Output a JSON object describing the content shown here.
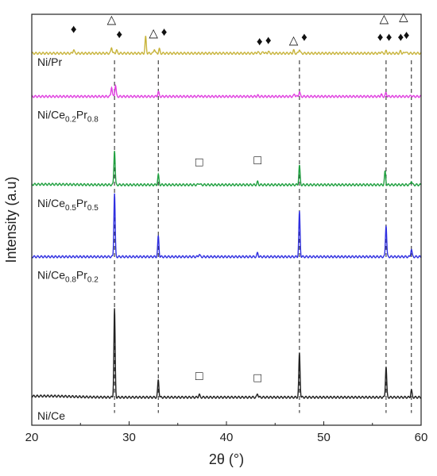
{
  "chart_data": {
    "type": "line",
    "xlabel": "2θ (°)",
    "ylabel": "Intensity (a.u)",
    "xlim": [
      20,
      60
    ],
    "x_ticks": [
      "20",
      "30",
      "40",
      "50",
      "60"
    ],
    "grid": false,
    "series": [
      {
        "name": "Ni/Pr",
        "label_main": "Ni/Pr",
        "label_parts": [
          {
            "t": "Ni/Pr",
            "sub": false
          }
        ],
        "color": "#c8b43c",
        "baseline": 0.905,
        "amp": 0.04,
        "hump": 0.0,
        "peaks": [
          [
            24.3,
            0.24
          ],
          [
            28.2,
            0.38
          ],
          [
            28.7,
            0.2
          ],
          [
            31.7,
            1.0
          ],
          [
            32.6,
            0.28
          ],
          [
            33.1,
            0.26
          ],
          [
            43.2,
            0.1
          ],
          [
            43.8,
            0.1
          ],
          [
            44.3,
            0.12
          ],
          [
            46.9,
            0.18
          ],
          [
            47.5,
            0.26
          ],
          [
            55.9,
            0.1
          ],
          [
            56.4,
            0.13
          ],
          [
            57.9,
            0.14
          ],
          [
            58.4,
            0.12
          ]
        ]
      },
      {
        "name": "Ni/Ce0.2Pr0.8",
        "label_main": "Ni/Ce0.2Pr0.8",
        "label_parts": [
          {
            "t": "Ni/Ce",
            "sub": false
          },
          {
            "t": "0.2",
            "sub": true
          },
          {
            "t": "Pr",
            "sub": false
          },
          {
            "t": "0.8",
            "sub": true
          }
        ],
        "color": "#e040e0",
        "baseline": 0.8,
        "amp": 0.04,
        "hump": 0.0,
        "peaks": [
          [
            28.2,
            0.6
          ],
          [
            28.6,
            0.7
          ],
          [
            33.0,
            0.3
          ],
          [
            37.2,
            0.04
          ],
          [
            43.2,
            0.06
          ],
          [
            47.0,
            0.15
          ],
          [
            47.5,
            0.3
          ],
          [
            55.9,
            0.12
          ],
          [
            56.4,
            0.22
          ],
          [
            59.0,
            0.06
          ]
        ]
      },
      {
        "name": "Ni/Ce0.5Pr0.5",
        "label_main": "Ni/Ce0.5Pr0.5",
        "label_parts": [
          {
            "t": "Ni/Ce",
            "sub": false
          },
          {
            "t": "0.5",
            "sub": true
          },
          {
            "t": "Pr",
            "sub": false
          },
          {
            "t": "0.5",
            "sub": true
          }
        ],
        "color": "#20a040",
        "baseline": 0.585,
        "amp": 0.085,
        "hump": 0.04,
        "peaks": [
          [
            28.5,
            1.0
          ],
          [
            33.0,
            0.28
          ],
          [
            37.2,
            0.05
          ],
          [
            43.2,
            0.08
          ],
          [
            47.5,
            0.55
          ],
          [
            56.3,
            0.38
          ],
          [
            59.0,
            0.12
          ]
        ]
      },
      {
        "name": "Ni/Ce0.8Pr0.2",
        "label_main": "Ni/Ce0.8Pr0.2",
        "label_parts": [
          {
            "t": "Ni/Ce",
            "sub": false
          },
          {
            "t": "0.8",
            "sub": true
          },
          {
            "t": "Pr",
            "sub": false
          },
          {
            "t": "0.2",
            "sub": true
          }
        ],
        "color": "#3030e0",
        "baseline": 0.41,
        "amp": 0.155,
        "hump": 0.0,
        "peaks": [
          [
            28.5,
            1.0
          ],
          [
            33.0,
            0.32
          ],
          [
            37.2,
            0.04
          ],
          [
            43.2,
            0.06
          ],
          [
            47.5,
            0.7
          ],
          [
            56.4,
            0.5
          ],
          [
            59.0,
            0.12
          ]
        ]
      },
      {
        "name": "Ni/Ce",
        "label_main": "Ni/Ce",
        "label_parts": [
          {
            "t": "Ni/Ce",
            "sub": false
          }
        ],
        "color": "#222222",
        "baseline": 0.068,
        "amp": 0.215,
        "hump": 0.1,
        "peaks": [
          [
            28.5,
            1.0
          ],
          [
            33.0,
            0.2
          ],
          [
            37.2,
            0.03
          ],
          [
            43.2,
            0.04
          ],
          [
            47.5,
            0.5
          ],
          [
            56.4,
            0.35
          ],
          [
            59.0,
            0.08
          ]
        ]
      }
    ],
    "reference_lines": [
      28.5,
      33.0,
      47.5,
      56.4,
      59.0
    ],
    "markers": [
      {
        "symbol": "♦",
        "x": 24.3,
        "y": 0.955,
        "type": "diamond"
      },
      {
        "symbol": "△",
        "x": 28.2,
        "y": 0.978,
        "type": "triangle"
      },
      {
        "symbol": "♦",
        "x": 29.0,
        "y": 0.942,
        "type": "diamond"
      },
      {
        "symbol": "△",
        "x": 32.5,
        "y": 0.945,
        "type": "triangle"
      },
      {
        "symbol": "♦",
        "x": 33.6,
        "y": 0.948,
        "type": "diamond"
      },
      {
        "symbol": "♦",
        "x": 43.4,
        "y": 0.925,
        "type": "diamond"
      },
      {
        "symbol": "♦",
        "x": 44.3,
        "y": 0.928,
        "type": "diamond"
      },
      {
        "symbol": "△",
        "x": 46.9,
        "y": 0.928,
        "type": "triangle"
      },
      {
        "symbol": "♦",
        "x": 48.0,
        "y": 0.935,
        "type": "diamond"
      },
      {
        "symbol": "△",
        "x": 56.2,
        "y": 0.98,
        "type": "triangle"
      },
      {
        "symbol": "♦",
        "x": 55.8,
        "y": 0.935,
        "type": "diamond"
      },
      {
        "symbol": "♦",
        "x": 56.7,
        "y": 0.935,
        "type": "diamond"
      },
      {
        "symbol": "△",
        "x": 58.2,
        "y": 0.985,
        "type": "triangle"
      },
      {
        "symbol": "♦",
        "x": 57.9,
        "y": 0.935,
        "type": "diamond"
      },
      {
        "symbol": "♦",
        "x": 58.5,
        "y": 0.94,
        "type": "diamond"
      },
      {
        "symbol": "□",
        "x": 37.2,
        "y": 0.63,
        "type": "square"
      },
      {
        "symbol": "□",
        "x": 43.2,
        "y": 0.635,
        "type": "square"
      },
      {
        "symbol": "□",
        "x": 37.2,
        "y": 0.11,
        "type": "square"
      },
      {
        "symbol": "□",
        "x": 43.2,
        "y": 0.105,
        "type": "square"
      }
    ]
  }
}
